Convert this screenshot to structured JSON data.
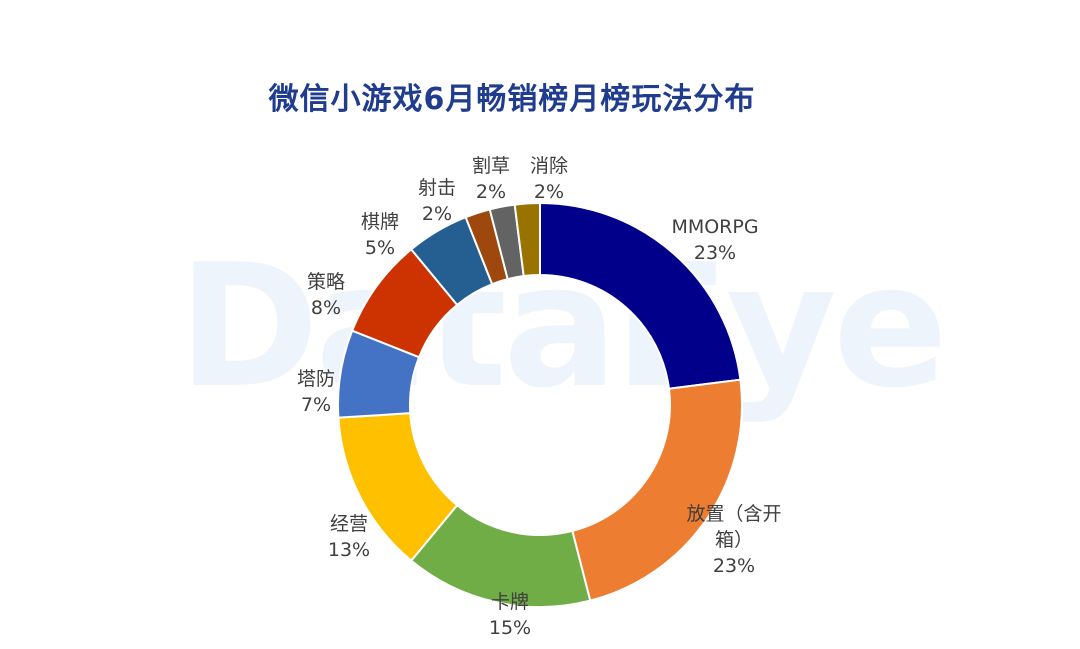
{
  "title": "微信小游戏6月畅销榜月榜玩法分布",
  "watermark": "DataEye",
  "chart_data": {
    "type": "pie",
    "title": "微信小游戏6月畅销榜月榜玩法分布",
    "donut": true,
    "slices": [
      {
        "name": "MMORPG",
        "label_lines": [
          "MMORPG"
        ],
        "pct_label": "23%",
        "value": 23,
        "color": "#00008B"
      },
      {
        "name": "放置（含开箱）",
        "label_lines": [
          "放置（含开",
          "箱）"
        ],
        "pct_label": "23%",
        "value": 23,
        "color": "#ED7D31"
      },
      {
        "name": "卡牌",
        "label_lines": [
          "卡牌"
        ],
        "pct_label": "15%",
        "value": 15,
        "color": "#70AD47"
      },
      {
        "name": "经营",
        "label_lines": [
          "经营"
        ],
        "pct_label": "13%",
        "value": 13,
        "color": "#FFC000"
      },
      {
        "name": "塔防",
        "label_lines": [
          "塔防"
        ],
        "pct_label": "7%",
        "value": 7,
        "color": "#4472C4"
      },
      {
        "name": "策略",
        "label_lines": [
          "策略"
        ],
        "pct_label": "8%",
        "value": 8,
        "color": "#CC3300"
      },
      {
        "name": "棋牌",
        "label_lines": [
          "棋牌"
        ],
        "pct_label": "5%",
        "value": 5,
        "color": "#255E91"
      },
      {
        "name": "射击",
        "label_lines": [
          "射击"
        ],
        "pct_label": "2%",
        "value": 2,
        "color": "#9E480E"
      },
      {
        "name": "割草",
        "label_lines": [
          "割草"
        ],
        "pct_label": "2%",
        "value": 2,
        "color": "#636363"
      },
      {
        "name": "消除",
        "label_lines": [
          "消除"
        ],
        "pct_label": "2%",
        "value": 2,
        "color": "#997300"
      }
    ]
  }
}
